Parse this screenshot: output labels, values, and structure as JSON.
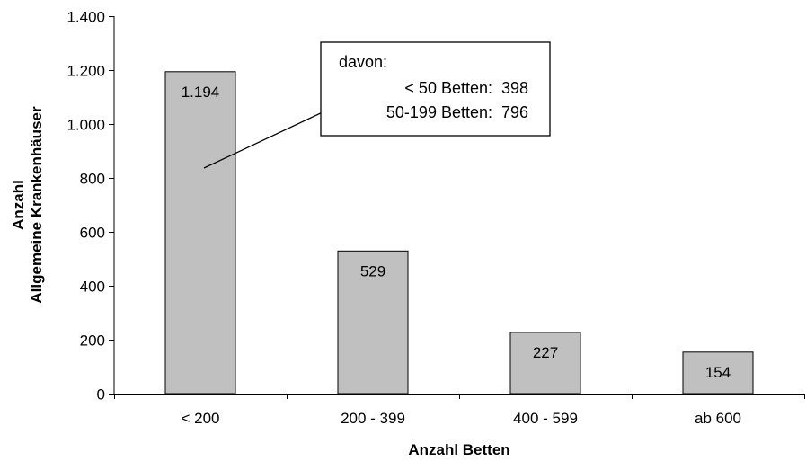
{
  "chart_data": {
    "type": "bar",
    "categories": [
      "< 200",
      "200 - 399",
      "400 - 599",
      "ab 600"
    ],
    "values": [
      1194,
      529,
      227,
      154
    ],
    "value_labels": [
      "1.194",
      "529",
      "227",
      "154"
    ],
    "xlabel": "Anzahl Betten",
    "ylabel_lines": [
      "Anzahl",
      "Allgemeine Krankenhäuser"
    ],
    "ylim": [
      0,
      1400
    ],
    "yticks": [
      0,
      200,
      400,
      600,
      800,
      1000,
      1200,
      1400
    ],
    "ytick_labels": [
      "0",
      "200",
      "400",
      "600",
      "800",
      "1.000",
      "1.200",
      "1.400"
    ],
    "grid": false,
    "bar_color": "#c0c0c0",
    "annotation": {
      "target_category": "< 200",
      "heading": "davon:",
      "rows": [
        {
          "label": "< 50 Betten:",
          "value": "398"
        },
        {
          "label": "50-199 Betten:",
          "value": "796"
        }
      ]
    }
  }
}
